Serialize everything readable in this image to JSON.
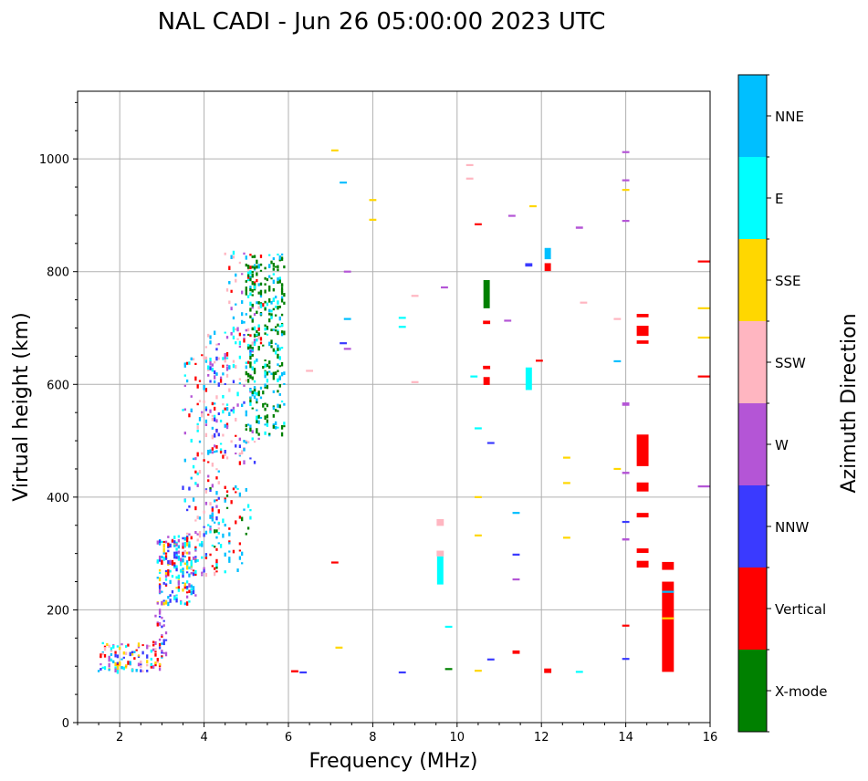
{
  "chart_data": {
    "type": "scatter",
    "title": "NAL CADI - Jun 26 05:00:00 2023 UTC",
    "xlabel": "Frequency (MHz)",
    "ylabel": "Virtual height (km)",
    "xlim": [
      1,
      16
    ],
    "ylim": [
      0,
      1120
    ],
    "xticks": [
      "2",
      "4",
      "6",
      "8",
      "10",
      "12",
      "14",
      "16"
    ],
    "yticks": [
      "0",
      "200",
      "400",
      "600",
      "800",
      "1000"
    ],
    "grid": true,
    "colorbar": {
      "label": "Azimuth Direction",
      "categories": [
        {
          "name": "X-mode",
          "color": "#008000"
        },
        {
          "name": "Vertical",
          "color": "#ff0000"
        },
        {
          "name": "NNW",
          "color": "#3a3aff"
        },
        {
          "name": "W",
          "color": "#b455d6"
        },
        {
          "name": "SSW",
          "color": "#ffb6c1"
        },
        {
          "name": "SSE",
          "color": "#ffd700"
        },
        {
          "name": "E",
          "color": "#00ffff"
        },
        {
          "name": "NNE",
          "color": "#00bfff"
        }
      ]
    },
    "echo_regions": [
      {
        "x": [
          1.5,
          3.0
        ],
        "y": [
          90,
          140
        ],
        "mix": [
          "NNW",
          "E",
          "NNE",
          "W",
          "Vertical",
          "SSW",
          "SSE"
        ],
        "density": 110
      },
      {
        "x": [
          2.8,
          3.1
        ],
        "y": [
          110,
          200
        ],
        "mix": [
          "Vertical",
          "W",
          "NNW"
        ],
        "density": 30
      },
      {
        "x": [
          2.9,
          3.8
        ],
        "y": [
          210,
          330
        ],
        "mix": [
          "Vertical",
          "E",
          "NNE",
          "SSE",
          "NNW",
          "W"
        ],
        "density": 180
      },
      {
        "x": [
          3.5,
          4.4
        ],
        "y": [
          260,
          420
        ],
        "mix": [
          "Vertical",
          "NNW",
          "E",
          "NNE",
          "W",
          "SSW"
        ],
        "density": 80
      },
      {
        "x": [
          4.1,
          5.1
        ],
        "y": [
          265,
          420
        ],
        "mix": [
          "X-mode",
          "NNE",
          "E",
          "Vertical"
        ],
        "density": 60
      },
      {
        "x": [
          3.5,
          4.6
        ],
        "y": [
          420,
          660
        ],
        "mix": [
          "Vertical",
          "W",
          "E",
          "NNE",
          "SSW"
        ],
        "density": 80
      },
      {
        "x": [
          4.0,
          5.3
        ],
        "y": [
          460,
          700
        ],
        "mix": [
          "Vertical",
          "E",
          "NNE",
          "W",
          "SSW",
          "NNW"
        ],
        "density": 160
      },
      {
        "x": [
          4.5,
          5.4
        ],
        "y": [
          660,
          840
        ],
        "mix": [
          "Vertical",
          "E",
          "W",
          "NNE",
          "SSW"
        ],
        "density": 60
      },
      {
        "x": [
          5.0,
          5.9
        ],
        "y": [
          510,
          830
        ],
        "mix": [
          "X-mode",
          "E",
          "NNE",
          "X-mode",
          "X-mode"
        ],
        "density": 300
      }
    ],
    "isolated_echoes": [
      {
        "f": 10.7,
        "h": 760,
        "dir": "X-mode",
        "len": 50
      },
      {
        "f": 10.7,
        "h": 606,
        "dir": "Vertical",
        "len": 14
      },
      {
        "f": 10.7,
        "h": 630,
        "dir": "Vertical",
        "len": 6
      },
      {
        "f": 10.7,
        "h": 710,
        "dir": "Vertical",
        "len": 6
      },
      {
        "f": 12.15,
        "h": 832,
        "dir": "NNE",
        "len": 20
      },
      {
        "f": 12.15,
        "h": 808,
        "dir": "Vertical",
        "len": 14
      },
      {
        "f": 11.7,
        "h": 610,
        "dir": "E",
        "len": 40
      },
      {
        "f": 9.6,
        "h": 270,
        "dir": "E",
        "len": 50
      },
      {
        "f": 9.6,
        "h": 300,
        "dir": "SSW",
        "len": 10
      },
      {
        "f": 9.6,
        "h": 355,
        "dir": "SSW",
        "len": 12
      },
      {
        "f": 14.4,
        "h": 483,
        "dir": "Vertical",
        "len": 56
      },
      {
        "f": 14.4,
        "h": 418,
        "dir": "Vertical",
        "len": 16
      },
      {
        "f": 14.4,
        "h": 368,
        "dir": "Vertical",
        "len": 8
      },
      {
        "f": 14.4,
        "h": 305,
        "dir": "Vertical",
        "len": 8
      },
      {
        "f": 14.4,
        "h": 281,
        "dir": "Vertical",
        "len": 12
      },
      {
        "f": 14.4,
        "h": 695,
        "dir": "Vertical",
        "len": 18
      },
      {
        "f": 14.4,
        "h": 722,
        "dir": "Vertical",
        "len": 6
      },
      {
        "f": 14.4,
        "h": 675,
        "dir": "Vertical",
        "len": 6
      },
      {
        "f": 15.0,
        "h": 170,
        "dir": "Vertical",
        "len": 160
      },
      {
        "f": 15.0,
        "h": 278,
        "dir": "Vertical",
        "len": 14
      },
      {
        "f": 15.0,
        "h": 232,
        "dir": "NNE",
        "len": 2
      },
      {
        "f": 15.0,
        "h": 185,
        "dir": "SSE",
        "len": 2
      },
      {
        "f": 14.0,
        "h": 565,
        "dir": "W",
        "len": 6
      },
      {
        "f": 14.0,
        "h": 443,
        "dir": "W",
        "len": 4
      },
      {
        "f": 14.0,
        "h": 325,
        "dir": "W",
        "len": 4
      },
      {
        "f": 14.0,
        "h": 356,
        "dir": "NNW",
        "len": 3
      },
      {
        "f": 14.0,
        "h": 172,
        "dir": "Vertical",
        "len": 3
      },
      {
        "f": 14.0,
        "h": 113,
        "dir": "NNW",
        "len": 3
      },
      {
        "f": 14.0,
        "h": 1012,
        "dir": "W",
        "len": 3
      },
      {
        "f": 14.0,
        "h": 962,
        "dir": "W",
        "len": 3
      },
      {
        "f": 14.0,
        "h": 890,
        "dir": "W",
        "len": 3
      },
      {
        "f": 14.0,
        "h": 945,
        "dir": "SSE",
        "len": 3
      },
      {
        "f": 13.8,
        "h": 450,
        "dir": "SSE",
        "len": 3
      },
      {
        "f": 12.9,
        "h": 878,
        "dir": "W",
        "len": 4
      },
      {
        "f": 12.6,
        "h": 470,
        "dir": "SSE",
        "len": 3
      },
      {
        "f": 12.6,
        "h": 425,
        "dir": "SSE",
        "len": 3
      },
      {
        "f": 12.6,
        "h": 328,
        "dir": "SSE",
        "len": 3
      },
      {
        "f": 12.15,
        "h": 92,
        "dir": "Vertical",
        "len": 8
      },
      {
        "f": 12.9,
        "h": 90,
        "dir": "E",
        "len": 3
      },
      {
        "f": 11.7,
        "h": 812,
        "dir": "NNW",
        "len": 6
      },
      {
        "f": 11.4,
        "h": 125,
        "dir": "Vertical",
        "len": 6
      },
      {
        "f": 10.5,
        "h": 884,
        "dir": "Vertical",
        "len": 3
      },
      {
        "f": 10.5,
        "h": 522,
        "dir": "E",
        "len": 3
      },
      {
        "f": 10.5,
        "h": 400,
        "dir": "SSE",
        "len": 3
      },
      {
        "f": 10.5,
        "h": 332,
        "dir": "SSE",
        "len": 3
      },
      {
        "f": 10.5,
        "h": 92,
        "dir": "SSE",
        "len": 3
      },
      {
        "f": 10.8,
        "h": 496,
        "dir": "NNW",
        "len": 3
      },
      {
        "f": 10.8,
        "h": 112,
        "dir": "NNW",
        "len": 3
      },
      {
        "f": 11.8,
        "h": 916,
        "dir": "SSE",
        "len": 3
      },
      {
        "f": 11.95,
        "h": 642,
        "dir": "Vertical",
        "len": 3
      },
      {
        "f": 15.85,
        "h": 818,
        "dir": "Vertical",
        "len": 3
      },
      {
        "f": 15.85,
        "h": 614,
        "dir": "Vertical",
        "len": 3
      },
      {
        "f": 15.85,
        "h": 735,
        "dir": "SSE",
        "len": 3
      },
      {
        "f": 15.85,
        "h": 683,
        "dir": "SSE",
        "len": 3
      },
      {
        "f": 15.85,
        "h": 419,
        "dir": "W",
        "len": 3
      },
      {
        "f": 8.7,
        "h": 718,
        "dir": "E",
        "len": 3
      },
      {
        "f": 8.7,
        "h": 702,
        "dir": "E",
        "len": 3
      },
      {
        "f": 8.7,
        "h": 89,
        "dir": "NNW",
        "len": 3
      },
      {
        "f": 8.0,
        "h": 927,
        "dir": "SSE",
        "len": 3
      },
      {
        "f": 8.0,
        "h": 892,
        "dir": "SSE",
        "len": 3
      },
      {
        "f": 7.3,
        "h": 958,
        "dir": "NNE",
        "len": 3
      },
      {
        "f": 7.1,
        "h": 1015,
        "dir": "SSE",
        "len": 3
      },
      {
        "f": 7.4,
        "h": 800,
        "dir": "W",
        "len": 3
      },
      {
        "f": 7.4,
        "h": 716,
        "dir": "NNE",
        "len": 3
      },
      {
        "f": 7.3,
        "h": 673,
        "dir": "NNW",
        "len": 3
      },
      {
        "f": 7.4,
        "h": 663,
        "dir": "W",
        "len": 3
      },
      {
        "f": 7.1,
        "h": 284,
        "dir": "Vertical",
        "len": 3
      },
      {
        "f": 7.2,
        "h": 133,
        "dir": "SSE",
        "len": 3
      },
      {
        "f": 6.15,
        "h": 91,
        "dir": "Vertical",
        "len": 4
      },
      {
        "f": 6.35,
        "h": 89,
        "dir": "NNW",
        "len": 3
      },
      {
        "f": 6.5,
        "h": 624,
        "dir": "SSW",
        "len": 3
      },
      {
        "f": 9.0,
        "h": 757,
        "dir": "SSW",
        "len": 3
      },
      {
        "f": 9.0,
        "h": 604,
        "dir": "SSW",
        "len": 3
      },
      {
        "f": 9.7,
        "h": 772,
        "dir": "W",
        "len": 3
      },
      {
        "f": 9.8,
        "h": 170,
        "dir": "E",
        "len": 3
      },
      {
        "f": 9.8,
        "h": 95,
        "dir": "X-mode",
        "len": 3
      },
      {
        "f": 10.3,
        "h": 989,
        "dir": "SSW",
        "len": 3
      },
      {
        "f": 10.3,
        "h": 965,
        "dir": "SSW",
        "len": 3
      },
      {
        "f": 10.4,
        "h": 614,
        "dir": "E",
        "len": 3
      },
      {
        "f": 11.2,
        "h": 713,
        "dir": "W",
        "len": 3
      },
      {
        "f": 11.3,
        "h": 899,
        "dir": "W",
        "len": 3
      },
      {
        "f": 11.4,
        "h": 372,
        "dir": "NNE",
        "len": 3
      },
      {
        "f": 11.4,
        "h": 298,
        "dir": "NNW",
        "len": 3
      },
      {
        "f": 11.4,
        "h": 254,
        "dir": "W",
        "len": 3
      },
      {
        "f": 13.0,
        "h": 745,
        "dir": "SSW",
        "len": 3
      },
      {
        "f": 13.8,
        "h": 716,
        "dir": "SSW",
        "len": 3
      },
      {
        "f": 13.8,
        "h": 641,
        "dir": "NNE",
        "len": 3
      }
    ]
  }
}
